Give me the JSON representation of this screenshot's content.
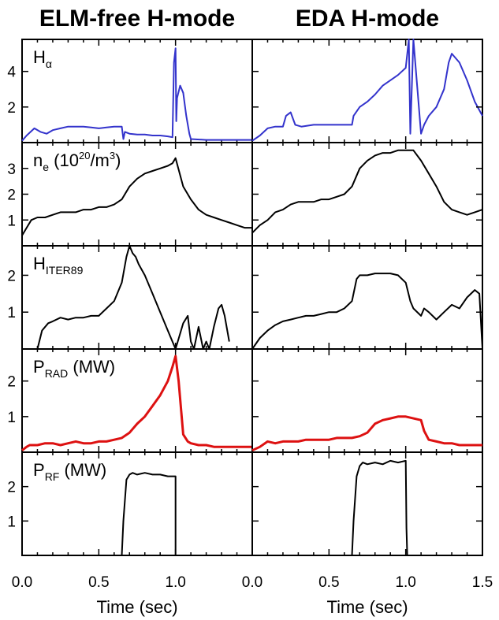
{
  "chart_data": {
    "type": "line",
    "columns": [
      {
        "title": "ELM-free H-mode"
      },
      {
        "title": "EDA H-mode"
      }
    ],
    "xlabel": "Time (sec)",
    "xlim": [
      0,
      1.5
    ],
    "xticks": [
      "0.0",
      "0.5",
      "1.0",
      "0.0",
      "0.5",
      "1.0",
      "1.5"
    ],
    "panels": [
      {
        "id": "halpha",
        "label_main": "H",
        "label_sub": "α",
        "label_sup": "",
        "label_rest": "",
        "color": "#3333cc",
        "ylim": [
          0,
          5.8
        ],
        "yticks": [
          2,
          4
        ],
        "series": [
          {
            "x": [
              0.0,
              0.03,
              0.08,
              0.12,
              0.16,
              0.2,
              0.25,
              0.3,
              0.35,
              0.4,
              0.45,
              0.5,
              0.55,
              0.6,
              0.65,
              0.66,
              0.67,
              0.7,
              0.75,
              0.8,
              0.85,
              0.9,
              0.95,
              0.98,
              0.99,
              1.0,
              1.005,
              1.01,
              1.03,
              1.05,
              1.07,
              1.09,
              1.1,
              1.2,
              1.3,
              1.4,
              1.5
            ],
            "y": [
              0.1,
              0.4,
              0.8,
              0.6,
              0.5,
              0.7,
              0.8,
              0.9,
              0.9,
              0.9,
              0.85,
              0.8,
              0.85,
              0.9,
              0.9,
              0.2,
              0.6,
              0.5,
              0.45,
              0.45,
              0.4,
              0.4,
              0.35,
              0.3,
              4.5,
              5.3,
              1.2,
              2.5,
              3.2,
              2.8,
              1.5,
              0.5,
              0.2,
              0.15,
              0.15,
              0.15,
              0.15
            ]
          },
          {
            "x": [
              0.0,
              0.05,
              0.1,
              0.15,
              0.2,
              0.22,
              0.25,
              0.28,
              0.32,
              0.4,
              0.5,
              0.55,
              0.6,
              0.65,
              0.66,
              0.7,
              0.75,
              0.8,
              0.85,
              0.9,
              0.95,
              1.0,
              1.02,
              1.03,
              1.05,
              1.1,
              1.12,
              1.15,
              1.2,
              1.25,
              1.28,
              1.3,
              1.35,
              1.4,
              1.45,
              1.5
            ],
            "y": [
              0.1,
              0.4,
              0.8,
              0.9,
              0.9,
              1.5,
              1.7,
              1.0,
              0.9,
              1.0,
              1.0,
              1.0,
              1.0,
              1.0,
              1.5,
              2.0,
              2.3,
              2.7,
              3.2,
              3.5,
              3.8,
              4.2,
              5.8,
              0.5,
              5.8,
              0.5,
              1.0,
              1.5,
              2.0,
              3.0,
              4.5,
              5.0,
              4.5,
              3.5,
              2.3,
              1.5
            ]
          }
        ]
      },
      {
        "id": "ne",
        "label_main": "n",
        "label_sub": "e",
        "label_sup": "20",
        "label_rest": "(10  /m³)",
        "color": "#000000",
        "ylim": [
          0,
          4
        ],
        "yticks": [
          1,
          2,
          3
        ],
        "series": [
          {
            "x": [
              0.0,
              0.03,
              0.06,
              0.1,
              0.15,
              0.2,
              0.25,
              0.3,
              0.35,
              0.4,
              0.45,
              0.5,
              0.55,
              0.6,
              0.65,
              0.7,
              0.75,
              0.8,
              0.85,
              0.9,
              0.95,
              0.98,
              1.0,
              1.05,
              1.1,
              1.15,
              1.2,
              1.25,
              1.3,
              1.35,
              1.4,
              1.45,
              1.5
            ],
            "y": [
              0.4,
              0.7,
              1.0,
              1.1,
              1.1,
              1.2,
              1.3,
              1.3,
              1.3,
              1.4,
              1.4,
              1.5,
              1.5,
              1.6,
              1.8,
              2.3,
              2.6,
              2.8,
              2.9,
              3.0,
              3.1,
              3.2,
              3.4,
              2.3,
              1.8,
              1.4,
              1.2,
              1.1,
              1.0,
              0.9,
              0.8,
              0.7,
              0.7
            ]
          },
          {
            "x": [
              0.0,
              0.05,
              0.1,
              0.15,
              0.2,
              0.25,
              0.3,
              0.35,
              0.4,
              0.45,
              0.5,
              0.55,
              0.6,
              0.65,
              0.7,
              0.75,
              0.8,
              0.85,
              0.9,
              0.95,
              1.0,
              1.05,
              1.1,
              1.15,
              1.2,
              1.25,
              1.3,
              1.35,
              1.4,
              1.45,
              1.5
            ],
            "y": [
              0.5,
              0.8,
              1.0,
              1.3,
              1.4,
              1.6,
              1.7,
              1.7,
              1.7,
              1.8,
              1.8,
              1.9,
              2.0,
              2.3,
              3.0,
              3.3,
              3.5,
              3.6,
              3.6,
              3.7,
              3.7,
              3.7,
              3.3,
              2.8,
              2.3,
              1.7,
              1.4,
              1.3,
              1.2,
              1.3,
              1.4
            ]
          }
        ]
      },
      {
        "id": "hiter",
        "label_main": "H",
        "label_sub": "ITER89",
        "label_sup": "",
        "label_rest": "",
        "color": "#000000",
        "ylim": [
          0,
          2.8
        ],
        "yticks": [
          1,
          2
        ],
        "series": [
          {
            "x": [
              0.1,
              0.13,
              0.17,
              0.2,
              0.25,
              0.3,
              0.35,
              0.4,
              0.45,
              0.5,
              0.55,
              0.6,
              0.65,
              0.68,
              0.7,
              0.72,
              0.74,
              0.76,
              0.8,
              0.85,
              0.9,
              0.95,
              1.0,
              1.05,
              1.08,
              1.1,
              1.12,
              1.15,
              1.18,
              1.2,
              1.22,
              1.25,
              1.28,
              1.3,
              1.32,
              1.35
            ],
            "y": [
              0,
              0.5,
              0.7,
              0.75,
              0.85,
              0.8,
              0.85,
              0.85,
              0.9,
              0.9,
              1.1,
              1.3,
              1.8,
              2.5,
              2.8,
              2.6,
              2.5,
              2.3,
              2.0,
              1.5,
              1.0,
              0.5,
              0.0,
              0.7,
              0.9,
              0.2,
              0.0,
              0.6,
              0.0,
              0.2,
              0.0,
              0.6,
              1.1,
              1.2,
              0.9,
              0.2
            ]
          },
          {
            "x": [
              0.0,
              0.05,
              0.1,
              0.15,
              0.2,
              0.25,
              0.3,
              0.35,
              0.4,
              0.45,
              0.5,
              0.55,
              0.6,
              0.65,
              0.68,
              0.7,
              0.75,
              0.8,
              0.85,
              0.9,
              0.95,
              1.0,
              1.03,
              1.05,
              1.1,
              1.12,
              1.15,
              1.2,
              1.25,
              1.3,
              1.35,
              1.4,
              1.45,
              1.48,
              1.5
            ],
            "y": [
              0,
              0.3,
              0.5,
              0.65,
              0.75,
              0.8,
              0.85,
              0.9,
              0.9,
              0.95,
              1.0,
              1.0,
              1.1,
              1.3,
              1.9,
              2.0,
              2.0,
              2.05,
              2.05,
              2.05,
              2.0,
              1.8,
              1.3,
              1.1,
              0.9,
              1.1,
              1.0,
              0.8,
              1.0,
              1.2,
              1.1,
              1.4,
              1.6,
              1.5,
              0.0
            ]
          }
        ]
      },
      {
        "id": "prad",
        "label_main": "P",
        "label_sub": "RAD",
        "label_sup": "",
        "label_rest": "(MW)",
        "color": "#dd1111",
        "ylim": [
          0,
          2.9
        ],
        "yticks": [
          1,
          2
        ],
        "series": [
          {
            "x": [
              0.0,
              0.03,
              0.05,
              0.1,
              0.15,
              0.2,
              0.25,
              0.3,
              0.35,
              0.4,
              0.45,
              0.5,
              0.55,
              0.6,
              0.65,
              0.7,
              0.75,
              0.8,
              0.85,
              0.9,
              0.95,
              0.98,
              1.0,
              1.02,
              1.05,
              1.08,
              1.1,
              1.15,
              1.2,
              1.25,
              1.3,
              1.35,
              1.4,
              1.45,
              1.5
            ],
            "y": [
              0.05,
              0.15,
              0.2,
              0.2,
              0.25,
              0.25,
              0.2,
              0.25,
              0.3,
              0.25,
              0.25,
              0.3,
              0.3,
              0.35,
              0.4,
              0.55,
              0.8,
              1.0,
              1.3,
              1.6,
              2.0,
              2.4,
              2.7,
              2.0,
              0.5,
              0.3,
              0.25,
              0.2,
              0.2,
              0.15,
              0.15,
              0.15,
              0.15,
              0.15,
              0.15
            ]
          },
          {
            "x": [
              0.0,
              0.05,
              0.1,
              0.15,
              0.2,
              0.25,
              0.3,
              0.35,
              0.4,
              0.45,
              0.5,
              0.55,
              0.6,
              0.65,
              0.7,
              0.75,
              0.8,
              0.85,
              0.9,
              0.95,
              1.0,
              1.05,
              1.1,
              1.12,
              1.15,
              1.2,
              1.25,
              1.3,
              1.35,
              1.4,
              1.45,
              1.5
            ],
            "y": [
              0.05,
              0.15,
              0.3,
              0.25,
              0.3,
              0.3,
              0.3,
              0.35,
              0.35,
              0.35,
              0.35,
              0.4,
              0.4,
              0.4,
              0.45,
              0.55,
              0.8,
              0.9,
              0.95,
              1.0,
              1.0,
              0.95,
              0.9,
              0.6,
              0.35,
              0.3,
              0.25,
              0.25,
              0.2,
              0.2,
              0.2,
              0.2
            ]
          }
        ]
      },
      {
        "id": "prf",
        "label_main": "P",
        "label_sub": "RF",
        "label_sup": "",
        "label_rest": "(MW)",
        "color": "#000000",
        "ylim": [
          0,
          3
        ],
        "yticks": [
          1,
          2
        ],
        "series": [
          {
            "x": [
              0.65,
              0.66,
              0.68,
              0.7,
              0.72,
              0.75,
              0.8,
              0.85,
              0.9,
              0.95,
              1.0,
              1.0
            ],
            "y": [
              0,
              1.0,
              2.2,
              2.35,
              2.4,
              2.35,
              2.4,
              2.35,
              2.35,
              2.3,
              2.3,
              0
            ]
          },
          {
            "x": [
              0.65,
              0.66,
              0.68,
              0.7,
              0.72,
              0.75,
              0.8,
              0.85,
              0.9,
              0.95,
              1.0,
              1.005,
              1.01
            ],
            "y": [
              0,
              1.0,
              2.3,
              2.6,
              2.7,
              2.65,
              2.7,
              2.65,
              2.75,
              2.7,
              2.75,
              0.8,
              0.0
            ]
          }
        ]
      }
    ]
  }
}
